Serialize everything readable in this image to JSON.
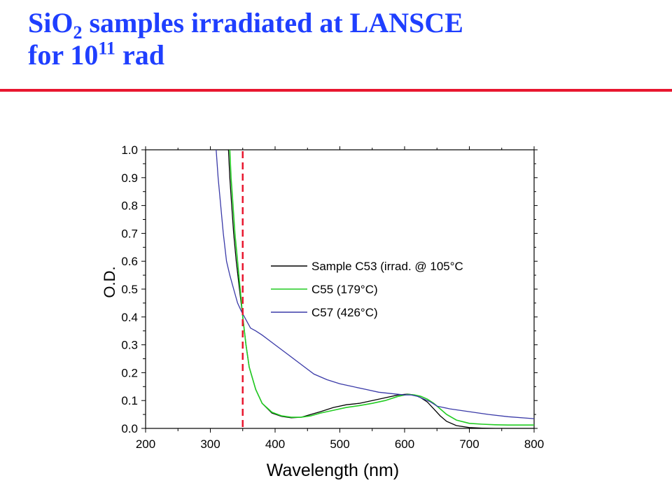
{
  "slide": {
    "title_line1_pre": "SiO",
    "title_line1_sub": "2",
    "title_line1_post": " samples irradiated at LANSCE",
    "title_line2_pre": "for 10",
    "title_line2_sup": "11",
    "title_line2_post": " rad",
    "title_color": "#1f3fff",
    "rule_color": "#e8172f"
  },
  "chart_data": {
    "type": "line",
    "title": "",
    "xlabel": "Wavelength (nm)",
    "ylabel": "O.D.",
    "xlim": [
      200,
      800
    ],
    "ylim": [
      0.0,
      1.0
    ],
    "xticks": [
      200,
      300,
      400,
      500,
      600,
      700,
      800
    ],
    "yticks": [
      0.0,
      0.1,
      0.2,
      0.3,
      0.4,
      0.5,
      0.6,
      0.7,
      0.8,
      0.9,
      1.0
    ],
    "grid": false,
    "legend_position": "center-right",
    "series": [
      {
        "name": "Sample C53 (irrad. @ 105°C",
        "color": "#000000",
        "x": [
          328,
          330,
          333,
          336,
          340,
          345,
          350,
          355,
          360,
          370,
          380,
          395,
          410,
          425,
          440,
          455,
          470,
          490,
          510,
          530,
          550,
          570,
          590,
          605,
          615,
          625,
          635,
          645,
          655,
          665,
          680,
          700,
          720,
          740,
          760,
          780,
          800
        ],
        "y": [
          1.0,
          0.9,
          0.8,
          0.7,
          0.6,
          0.5,
          0.4,
          0.3,
          0.22,
          0.14,
          0.09,
          0.055,
          0.043,
          0.038,
          0.04,
          0.05,
          0.06,
          0.075,
          0.085,
          0.09,
          0.1,
          0.11,
          0.12,
          0.123,
          0.12,
          0.11,
          0.095,
          0.07,
          0.045,
          0.025,
          0.01,
          0.003,
          0.001,
          0.0,
          0.0,
          0.0,
          0.0
        ]
      },
      {
        "name": "C55 (179°C)",
        "color": "#22cc22",
        "x": [
          330,
          332,
          335,
          338,
          342,
          346,
          350,
          355,
          360,
          370,
          380,
          395,
          410,
          425,
          440,
          455,
          470,
          490,
          510,
          530,
          550,
          570,
          590,
          605,
          615,
          625,
          635,
          645,
          655,
          665,
          680,
          700,
          720,
          740,
          760,
          780,
          800
        ],
        "y": [
          1.0,
          0.9,
          0.8,
          0.7,
          0.6,
          0.5,
          0.4,
          0.3,
          0.22,
          0.14,
          0.09,
          0.058,
          0.045,
          0.04,
          0.04,
          0.045,
          0.055,
          0.065,
          0.075,
          0.082,
          0.09,
          0.1,
          0.115,
          0.122,
          0.12,
          0.115,
          0.105,
          0.09,
          0.07,
          0.05,
          0.03,
          0.018,
          0.015,
          0.013,
          0.012,
          0.012,
          0.012
        ]
      },
      {
        "name": "C57 (426°C)",
        "color": "#3a3aa8",
        "x": [
          309,
          312,
          316,
          320,
          325,
          330,
          336,
          342,
          348,
          355,
          362,
          370,
          380,
          400,
          420,
          440,
          460,
          480,
          500,
          520,
          540,
          560,
          580,
          600,
          610,
          620,
          630,
          640,
          650,
          670,
          700,
          730,
          760,
          800
        ],
        "y": [
          1.0,
          0.9,
          0.8,
          0.7,
          0.6,
          0.55,
          0.5,
          0.45,
          0.42,
          0.39,
          0.36,
          0.35,
          0.335,
          0.3,
          0.265,
          0.23,
          0.195,
          0.175,
          0.16,
          0.15,
          0.14,
          0.13,
          0.125,
          0.12,
          0.12,
          0.115,
          0.105,
          0.095,
          0.08,
          0.07,
          0.06,
          0.05,
          0.042,
          0.035
        ]
      }
    ],
    "annotations": [
      {
        "type": "vertical-dashed-line",
        "x": 350,
        "color": "#e8172f"
      }
    ]
  }
}
